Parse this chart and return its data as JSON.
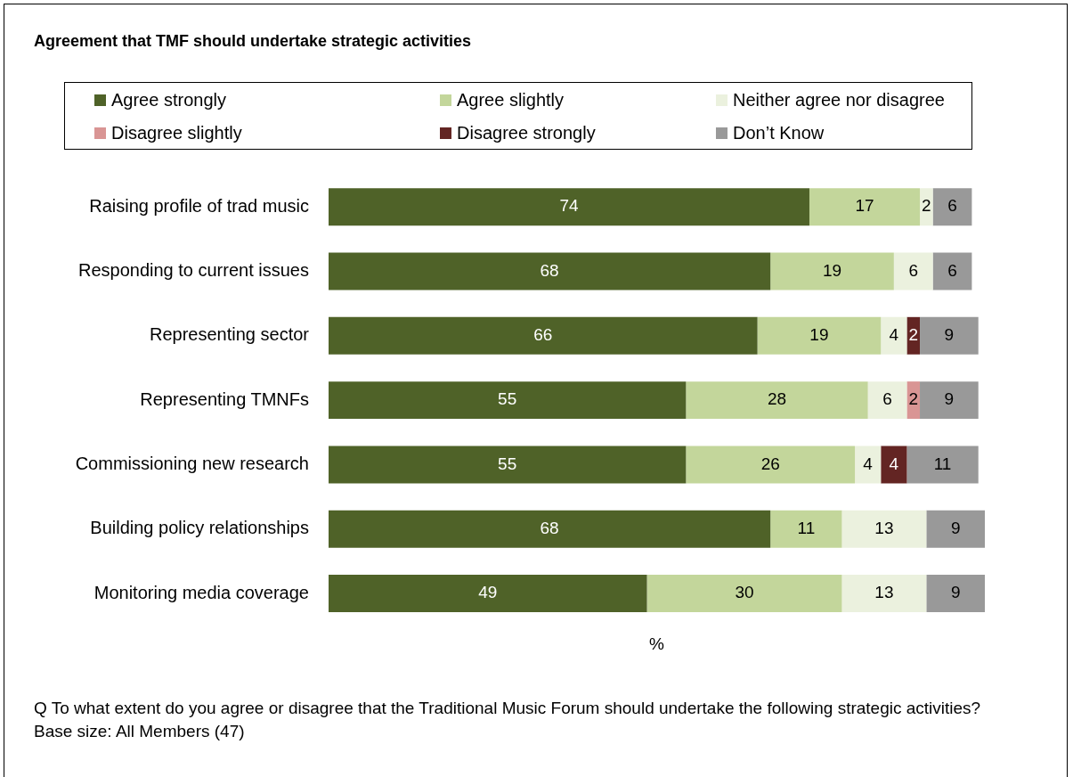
{
  "chart_data": {
    "type": "bar",
    "orientation": "horizontal",
    "stacked": true,
    "relative": false,
    "data_labels": true,
    "legend": "top",
    "tick_labels": "y",
    "title": "Agreement that TMF should undertake strategic activities",
    "xlabel": "%",
    "categories": [
      "Raising profile of trad music",
      "Responding to current issues",
      "Representing sector",
      "Representing TMNFs",
      "Commissioning new research",
      "Building policy relationships",
      "Monitoring media coverage"
    ],
    "series": [
      {
        "name": "Agree strongly",
        "color": "#4f6228",
        "values": [
          74,
          68,
          66,
          55,
          55,
          68,
          49
        ]
      },
      {
        "name": "Agree slightly",
        "color": "#c3d69b",
        "values": [
          17,
          19,
          19,
          28,
          26,
          11,
          30
        ]
      },
      {
        "name": "Neither agree nor disagree",
        "color": "#ebf1de",
        "values": [
          2,
          6,
          4,
          6,
          4,
          13,
          13
        ]
      },
      {
        "name": "Disagree slightly",
        "color": "#d99594",
        "values": [
          null,
          null,
          null,
          2,
          null,
          null,
          null
        ]
      },
      {
        "name": "Disagree strongly",
        "color": "#632523",
        "values": [
          null,
          null,
          2,
          null,
          4,
          null,
          null
        ]
      },
      {
        "name": "Don’t Know",
        "color": "#999999",
        "values": [
          6,
          6,
          9,
          9,
          11,
          9,
          9
        ]
      }
    ],
    "annotations": [
      "Q  To what extent do you agree or disagree that the Traditional Music Forum should undertake the following strategic activities?",
      "Base size: All Members (47)"
    ]
  }
}
